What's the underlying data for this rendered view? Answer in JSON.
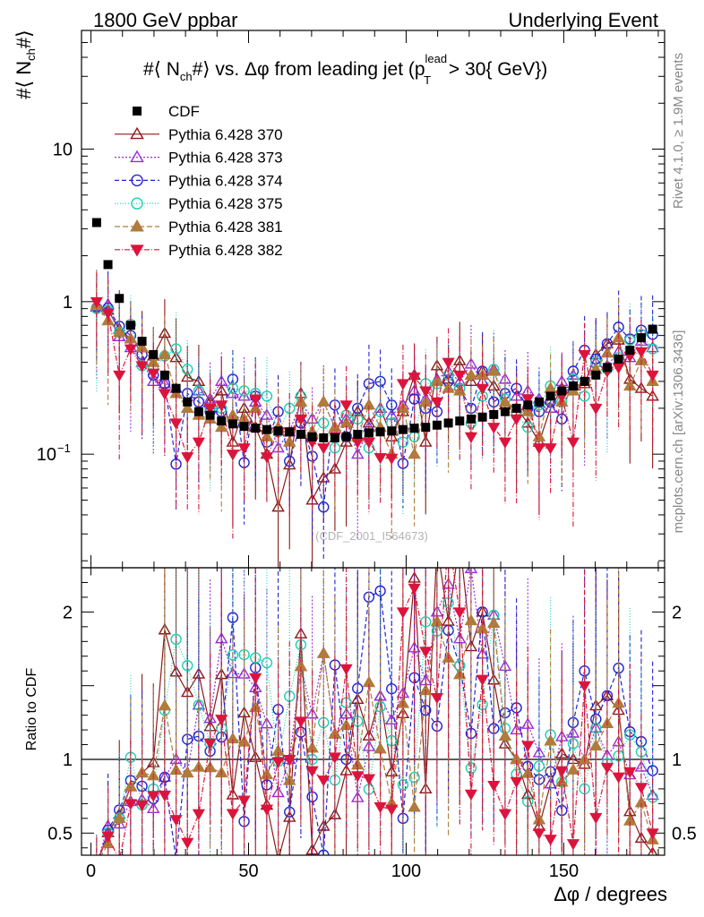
{
  "header": {
    "left": "1800 GeV ppbar",
    "right": "Underlying Event"
  },
  "side_labels": {
    "rivet": "Rivet 4.1.0, ≥ 1.9M events",
    "mcplots": "mcplots.cern.ch [arXiv:1306.3436]"
  },
  "chart_data": {
    "type": "scatter",
    "title": "#⟨ N_ch#⟩ vs. Δφ from leading jet  (p_T^lead > 30{ GeV})",
    "title_parts": {
      "a": "#⟨ N",
      "a_sub": "ch",
      "b": "#⟩ vs. Δφ from leading jet  (p",
      "b_sup": "lead",
      "b_sub": "T",
      "c": " > 30{ GeV})"
    },
    "ylabel_parts": {
      "a": "#⟨ N",
      "sub": "ch",
      "b": "#⟩"
    },
    "ratio_ylabel": "Ratio to CDF",
    "xlabel": "Δφ / degrees",
    "watermark": "(CDF_2001_I564673)",
    "xlim": [
      -3,
      182
    ],
    "ylim": [
      0.018,
      60
    ],
    "yscale": "log",
    "ratio_ylim": [
      0.35,
      2.3
    ],
    "x_ticks": [
      {
        "value": 0,
        "label": "0"
      },
      {
        "value": 50,
        "label": "50"
      },
      {
        "value": 100,
        "label": "100"
      },
      {
        "value": 150,
        "label": "150"
      }
    ],
    "y_ticks": [
      {
        "value": 10,
        "label": "10"
      },
      {
        "value": 1,
        "label": "1"
      },
      {
        "value": 0.1,
        "label": "10",
        "sup": "−1"
      }
    ],
    "ratio_ticks": [
      {
        "value": 2,
        "label": "2"
      },
      {
        "value": 1,
        "label": "1"
      },
      {
        "value": 0.5,
        "label": "0.5"
      }
    ],
    "x": [
      1.8,
      5.4,
      9,
      12.6,
      16.2,
      19.8,
      23.4,
      27,
      30.6,
      34.2,
      37.8,
      41.4,
      45,
      48.6,
      52.2,
      55.8,
      59.4,
      63,
      66.6,
      70.2,
      73.8,
      77.4,
      81,
      84.6,
      88.2,
      91.8,
      95.4,
      99,
      102.6,
      106.2,
      109.8,
      113.4,
      117,
      120.6,
      124.2,
      127.8,
      131.4,
      135,
      138.6,
      142.2,
      145.8,
      149.4,
      153,
      156.6,
      160.2,
      163.8,
      167.4,
      171,
      174.6,
      178.2
    ],
    "data": {
      "name": "CDF",
      "color": "#000000",
      "values": [
        3.3,
        1.75,
        1.05,
        0.7,
        0.55,
        0.45,
        0.33,
        0.27,
        0.22,
        0.19,
        0.18,
        0.165,
        0.158,
        0.152,
        0.148,
        0.145,
        0.142,
        0.14,
        0.135,
        0.13,
        0.128,
        0.128,
        0.13,
        0.135,
        0.138,
        0.14,
        0.142,
        0.145,
        0.148,
        0.15,
        0.155,
        0.16,
        0.165,
        0.17,
        0.175,
        0.182,
        0.19,
        0.2,
        0.21,
        0.22,
        0.24,
        0.26,
        0.28,
        0.3,
        0.33,
        0.37,
        0.42,
        0.48,
        0.58,
        0.66
      ]
    },
    "series": [
      {
        "name": "Pythia 6.428 370",
        "color": "#8b1a1a",
        "marker": "triangle-open",
        "dash": "",
        "values": [
          0.92,
          0.88,
          0.66,
          0.57,
          0.5,
          0.44,
          0.62,
          0.43,
          0.32,
          0.3,
          0.22,
          0.26,
          0.12,
          0.2,
          0.15,
          0.1,
          0.045,
          0.085,
          0.25,
          0.05,
          0.07,
          0.08,
          0.12,
          0.19,
          0.16,
          0.2,
          0.13,
          0.19,
          0.33,
          0.12,
          0.38,
          0.31,
          0.41,
          0.3,
          0.35,
          0.28,
          0.21,
          0.2,
          0.16,
          0.12,
          0.2,
          0.27,
          0.28,
          0.29,
          0.45,
          0.53,
          0.56,
          0.31,
          0.27,
          0.24
        ]
      },
      {
        "name": "Pythia 6.428 373",
        "color": "#9a2bd8",
        "marker": "triangle-open",
        "dash": "2,2",
        "values": [
          0.93,
          0.96,
          0.59,
          0.5,
          0.4,
          0.3,
          0.29,
          0.27,
          0.2,
          0.26,
          0.23,
          0.3,
          0.25,
          0.24,
          0.22,
          0.18,
          0.11,
          0.14,
          0.22,
          0.17,
          0.22,
          0.15,
          0.17,
          0.1,
          0.15,
          0.2,
          0.18,
          0.21,
          0.26,
          0.23,
          0.31,
          0.35,
          0.3,
          0.39,
          0.3,
          0.36,
          0.31,
          0.24,
          0.26,
          0.23,
          0.2,
          0.3,
          0.33,
          0.3,
          0.4,
          0.38,
          0.47,
          0.43,
          0.55,
          0.5
        ]
      },
      {
        "name": "Pythia 6.428 374",
        "color": "#2323d6",
        "marker": "circle-open",
        "dash": "5,3",
        "values": [
          0.91,
          0.91,
          0.69,
          0.6,
          0.45,
          0.33,
          0.29,
          0.086,
          0.25,
          0.22,
          0.19,
          0.19,
          0.31,
          0.088,
          0.24,
          0.12,
          0.19,
          0.09,
          0.16,
          0.097,
          0.045,
          0.21,
          0.13,
          0.2,
          0.29,
          0.3,
          0.21,
          0.087,
          0.23,
          0.2,
          0.19,
          0.3,
          0.27,
          0.2,
          0.35,
          0.22,
          0.25,
          0.27,
          0.2,
          0.19,
          0.22,
          0.17,
          0.35,
          0.48,
          0.42,
          0.53,
          0.68,
          0.57,
          0.65,
          0.61
        ]
      },
      {
        "name": "Pythia 6.428 375",
        "color": "#1fcfaf",
        "marker": "circle-open",
        "dash": "1,2",
        "values": [
          0.9,
          0.88,
          0.63,
          0.71,
          0.38,
          0.36,
          0.44,
          0.49,
          0.36,
          0.26,
          0.2,
          0.2,
          0.27,
          0.26,
          0.25,
          0.24,
          0.14,
          0.2,
          0.24,
          0.13,
          0.16,
          0.11,
          0.18,
          0.17,
          0.11,
          0.19,
          0.16,
          0.12,
          0.13,
          0.29,
          0.29,
          0.33,
          0.27,
          0.16,
          0.24,
          0.36,
          0.23,
          0.18,
          0.15,
          0.21,
          0.28,
          0.22,
          0.31,
          0.24,
          0.4,
          0.36,
          0.43,
          0.56,
          0.61,
          0.49
        ]
      },
      {
        "name": "Pythia 6.428 381",
        "color": "#b07b3b",
        "marker": "triangle-filled",
        "dash": "6,3",
        "values": [
          0.95,
          0.75,
          0.63,
          0.57,
          0.5,
          0.4,
          0.45,
          0.25,
          0.2,
          0.18,
          0.17,
          0.15,
          0.18,
          0.17,
          0.2,
          0.13,
          0.15,
          0.12,
          0.22,
          0.14,
          0.22,
          0.15,
          0.16,
          0.13,
          0.21,
          0.15,
          0.1,
          0.2,
          0.1,
          0.22,
          0.3,
          0.27,
          0.26,
          0.33,
          0.33,
          0.35,
          0.22,
          0.2,
          0.19,
          0.13,
          0.27,
          0.22,
          0.26,
          0.3,
          0.36,
          0.46,
          0.58,
          0.28,
          0.41,
          0.3
        ]
      },
      {
        "name": "Pythia 6.428 382",
        "color": "#dc143c",
        "marker": "triangle-down-filled",
        "dash": "6,2,1,2",
        "values": [
          1.0,
          0.84,
          0.33,
          0.49,
          0.38,
          0.34,
          0.25,
          0.16,
          0.096,
          0.12,
          0.2,
          0.21,
          0.1,
          0.11,
          0.23,
          0.096,
          0.14,
          0.14,
          0.17,
          0.12,
          0.11,
          0.13,
          0.21,
          0.12,
          0.12,
          0.095,
          0.094,
          0.29,
          0.32,
          0.26,
          0.22,
          0.4,
          0.33,
          0.13,
          0.27,
          0.15,
          0.12,
          0.17,
          0.23,
          0.11,
          0.11,
          0.24,
          0.12,
          0.45,
          0.2,
          0.35,
          0.37,
          0.44,
          0.47,
          0.33
        ]
      }
    ]
  }
}
